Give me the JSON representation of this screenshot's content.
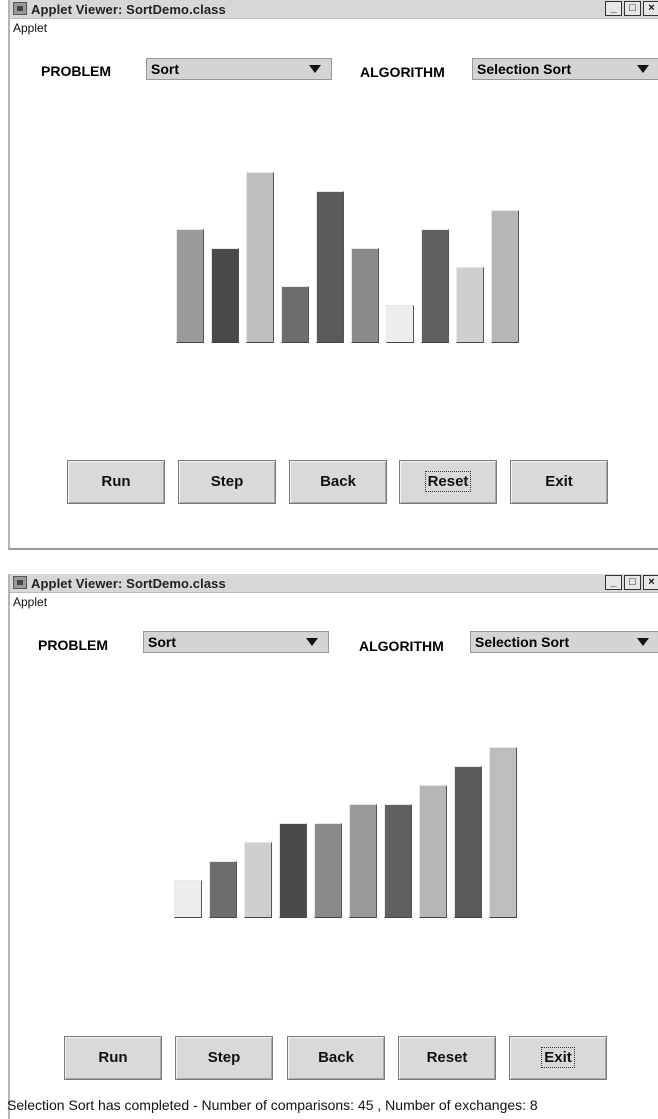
{
  "window1": {
    "title": "Applet Viewer: SortDemo.class",
    "menu": "Applet",
    "problem_label": "PROBLEM",
    "problem_value": "Sort",
    "algorithm_label": "ALGORITHM",
    "algorithm_value": "Selection Sort",
    "buttons": {
      "run": "Run",
      "step": "Step",
      "back": "Back",
      "reset": "Reset",
      "exit": "Exit"
    },
    "focused_button": "reset"
  },
  "window2": {
    "title": "Applet Viewer: SortDemo.class",
    "menu": "Applet",
    "problem_label": "PROBLEM",
    "problem_value": "Sort",
    "algorithm_label": "ALGORITHM",
    "algorithm_value": "Selection Sort",
    "buttons": {
      "run": "Run",
      "step": "Step",
      "back": "Back",
      "reset": "Reset",
      "exit": "Exit"
    },
    "focused_button": "exit"
  },
  "window_controls": {
    "minimize": "_",
    "maximize": "□",
    "close": "×"
  },
  "status_text": "Selection Sort has completed - Number of comparisons: 45 , Number of exchanges: 8",
  "chart_data": [
    {
      "type": "bar",
      "state": "unsorted",
      "values": [
        6,
        5,
        9,
        3,
        8,
        5,
        2,
        6,
        4,
        7
      ],
      "colors": [
        "#9a9a9a",
        "#4a4a4a",
        "#bdbdbd",
        "#6e6e6e",
        "#5a5a5a",
        "#8a8a8a",
        "#eeeeee",
        "#606060",
        "#cfcfcf",
        "#b6b6b6"
      ]
    },
    {
      "type": "bar",
      "state": "sorted",
      "values": [
        2,
        3,
        4,
        5,
        5,
        6,
        6,
        7,
        8,
        9
      ],
      "colors": [
        "#eeeeee",
        "#6e6e6e",
        "#cfcfcf",
        "#4a4a4a",
        "#8a8a8a",
        "#9a9a9a",
        "#606060",
        "#b6b6b6",
        "#5a5a5a",
        "#bdbdbd"
      ]
    }
  ]
}
